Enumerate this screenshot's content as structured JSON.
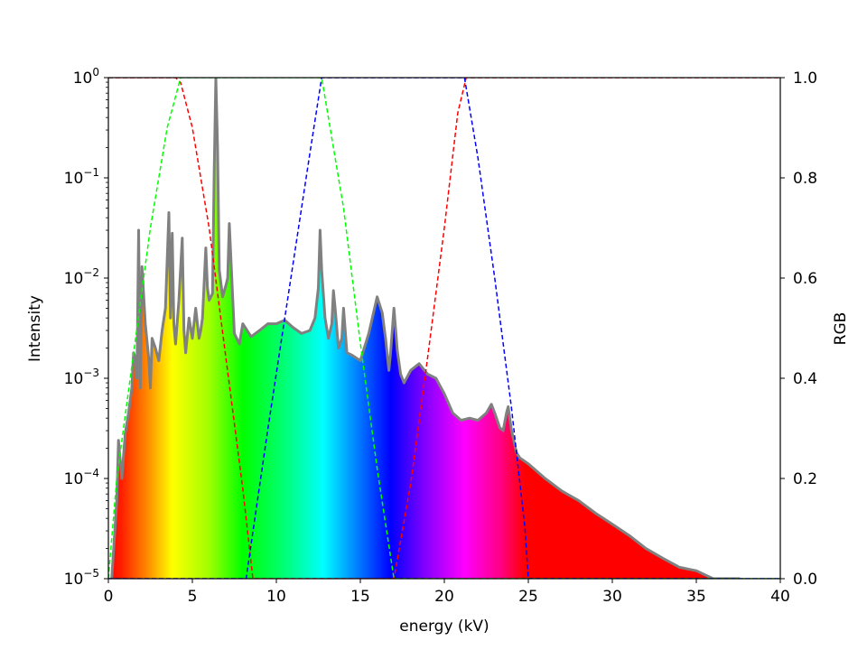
{
  "chart_data": {
    "type": "area",
    "xlabel": "energy (kV)",
    "ylabel": "Intensity",
    "y2label": "RGB",
    "xlim": [
      0,
      40
    ],
    "ylim": [
      1e-05,
      1
    ],
    "yscale": "log",
    "y2lim": [
      0,
      1
    ],
    "x_ticks": [
      0,
      5,
      10,
      15,
      20,
      25,
      30,
      35,
      40
    ],
    "y_ticks": [
      {
        "value": 1e-05,
        "base": "10",
        "exp": "−5"
      },
      {
        "value": 0.0001,
        "base": "10",
        "exp": "−4"
      },
      {
        "value": 0.001,
        "base": "10",
        "exp": "−3"
      },
      {
        "value": 0.01,
        "base": "10",
        "exp": "−2"
      },
      {
        "value": 0.1,
        "base": "10",
        "exp": "−1"
      },
      {
        "value": 1,
        "base": "10",
        "exp": "0"
      }
    ],
    "y2_ticks": [
      "0.0",
      "0.2",
      "0.4",
      "0.6",
      "0.8",
      "1.0"
    ],
    "grid": false,
    "spectrum_color": "#808080",
    "spectrum": {
      "x": [
        0.2,
        0.5,
        0.6,
        0.8,
        1.0,
        1.2,
        1.4,
        1.5,
        1.6,
        1.7,
        1.8,
        1.9,
        2.0,
        2.2,
        2.4,
        2.5,
        2.6,
        2.8,
        3.0,
        3.2,
        3.4,
        3.5,
        3.6,
        3.7,
        3.8,
        3.9,
        4.0,
        4.2,
        4.4,
        4.5,
        4.6,
        4.8,
        5.0,
        5.2,
        5.4,
        5.5,
        5.6,
        5.8,
        5.9,
        6.0,
        6.2,
        6.3,
        6.4,
        6.5,
        6.6,
        6.8,
        7.0,
        7.1,
        7.2,
        7.5,
        7.8,
        8.0,
        8.5,
        9.0,
        9.5,
        10.0,
        10.5,
        11.0,
        11.5,
        12.0,
        12.3,
        12.5,
        12.6,
        12.7,
        12.9,
        13.1,
        13.3,
        13.4,
        13.5,
        13.7,
        13.9,
        14.0,
        14.2,
        14.5,
        15.0,
        15.5,
        16.0,
        16.3,
        16.5,
        16.7,
        16.8,
        17.0,
        17.2,
        17.4,
        17.6,
        18.0,
        18.5,
        19.0,
        19.5,
        20.0,
        20.5,
        21.0,
        21.5,
        22.0,
        22.5,
        22.8,
        23.0,
        23.3,
        23.5,
        23.7,
        23.8,
        24.0,
        24.3,
        24.5,
        25.0,
        26.0,
        27.0,
        28.0,
        29.0,
        30.0,
        31.0,
        32.0,
        33.0,
        34.0,
        35.0,
        36.0,
        37.0,
        37.5,
        37.6
      ],
      "y": [
        1e-05,
        6e-05,
        0.00024,
        0.0001,
        0.00028,
        0.00045,
        0.0008,
        0.0018,
        0.0016,
        0.001,
        0.03,
        0.0008,
        0.013,
        0.0035,
        0.0016,
        0.0008,
        0.0025,
        0.002,
        0.0015,
        0.003,
        0.005,
        0.015,
        0.045,
        0.004,
        0.028,
        0.0035,
        0.0022,
        0.006,
        0.025,
        0.003,
        0.0018,
        0.004,
        0.0025,
        0.005,
        0.0025,
        0.003,
        0.004,
        0.02,
        0.008,
        0.006,
        0.007,
        0.12,
        1.0,
        0.2,
        0.012,
        0.0065,
        0.0085,
        0.01,
        0.035,
        0.0028,
        0.0022,
        0.0035,
        0.0026,
        0.003,
        0.0035,
        0.0035,
        0.0038,
        0.0032,
        0.0028,
        0.003,
        0.004,
        0.008,
        0.03,
        0.012,
        0.004,
        0.0025,
        0.0035,
        0.0075,
        0.005,
        0.002,
        0.0025,
        0.005,
        0.0018,
        0.0017,
        0.0015,
        0.0028,
        0.0065,
        0.0045,
        0.0025,
        0.0012,
        0.0018,
        0.005,
        0.0019,
        0.0011,
        0.0009,
        0.0012,
        0.0014,
        0.0011,
        0.001,
        0.0007,
        0.00045,
        0.00038,
        0.0004,
        0.00038,
        0.00045,
        0.00055,
        0.00045,
        0.00032,
        0.0003,
        0.00045,
        0.00052,
        0.0003,
        0.00018,
        0.00016,
        0.00014,
        0.0001,
        7.5e-05,
        6e-05,
        4.5e-05,
        3.5e-05,
        2.7e-05,
        2e-05,
        1.6e-05,
        1.3e-05,
        1.2e-05,
        1e-05,
        1e-05,
        1e-05,
        1e-05
      ]
    },
    "rgb_curves": [
      {
        "color": "#ff0000",
        "x": [
          0,
          4.0,
          4.3,
          5.0,
          6.0,
          7.0,
          8.0,
          8.6,
          17.0,
          18.0,
          19.0,
          20.0,
          20.8,
          21.3,
          40
        ],
        "y": [
          1,
          1,
          0.99,
          0.9,
          0.7,
          0.44,
          0.18,
          0,
          0,
          0.19,
          0.44,
          0.7,
          0.93,
          1,
          1
        ]
      },
      {
        "color": "#00ff00",
        "x": [
          0,
          0.5,
          1.5,
          2.5,
          3.5,
          4.3,
          12.7,
          14.0,
          15.0,
          16.0,
          17.0,
          40
        ],
        "y": [
          0,
          0.2,
          0.45,
          0.7,
          0.9,
          1,
          1,
          0.74,
          0.47,
          0.22,
          0,
          0
        ]
      },
      {
        "color": "#0000ff",
        "x": [
          0,
          8.2,
          9.5,
          11.0,
          12.0,
          12.7,
          21.2,
          22.0,
          23.0,
          24.0,
          24.8,
          25.0,
          40
        ],
        "y": [
          0,
          0,
          0.3,
          0.63,
          0.85,
          1,
          1,
          0.84,
          0.6,
          0.34,
          0.1,
          0,
          0
        ]
      }
    ]
  }
}
